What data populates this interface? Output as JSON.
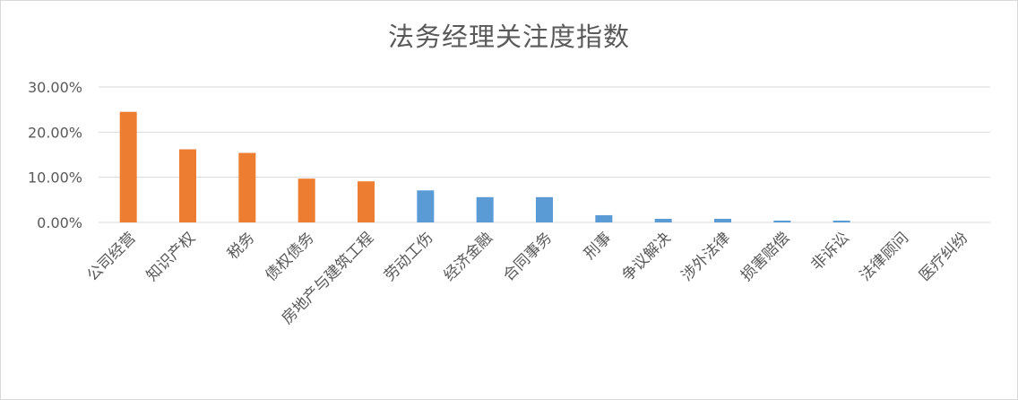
{
  "chart_data": {
    "type": "bar",
    "title": "法务经理关注度指数",
    "xlabel": "",
    "ylabel": "",
    "ylim": [
      0,
      30
    ],
    "yticks": [
      "0.00%",
      "10.00%",
      "20.00%",
      "30.00%"
    ],
    "ytick_values": [
      0,
      10,
      20,
      30
    ],
    "grid": true,
    "legend": "none",
    "categories": [
      "公司经营",
      "知识产权",
      "税务",
      "债权债务",
      "房地产与建筑工程",
      "劳动工伤",
      "经济金融",
      "合同事务",
      "刑事",
      "争议解决",
      "涉外法律",
      "损害赔偿",
      "非诉讼",
      "法律顾问",
      "医疗纠纷"
    ],
    "values": [
      24.5,
      16.2,
      15.4,
      9.7,
      9.1,
      7.1,
      5.6,
      5.6,
      1.6,
      0.8,
      0.8,
      0.4,
      0.4,
      0.0,
      0.0
    ],
    "colors": [
      "#ed7d31",
      "#ed7d31",
      "#ed7d31",
      "#ed7d31",
      "#ed7d31",
      "#5b9bd5",
      "#5b9bd5",
      "#5b9bd5",
      "#5b9bd5",
      "#5b9bd5",
      "#5b9bd5",
      "#5b9bd5",
      "#5b9bd5",
      "#5b9bd5",
      "#5b9bd5"
    ],
    "gridline_color": "#d9d9d9"
  }
}
